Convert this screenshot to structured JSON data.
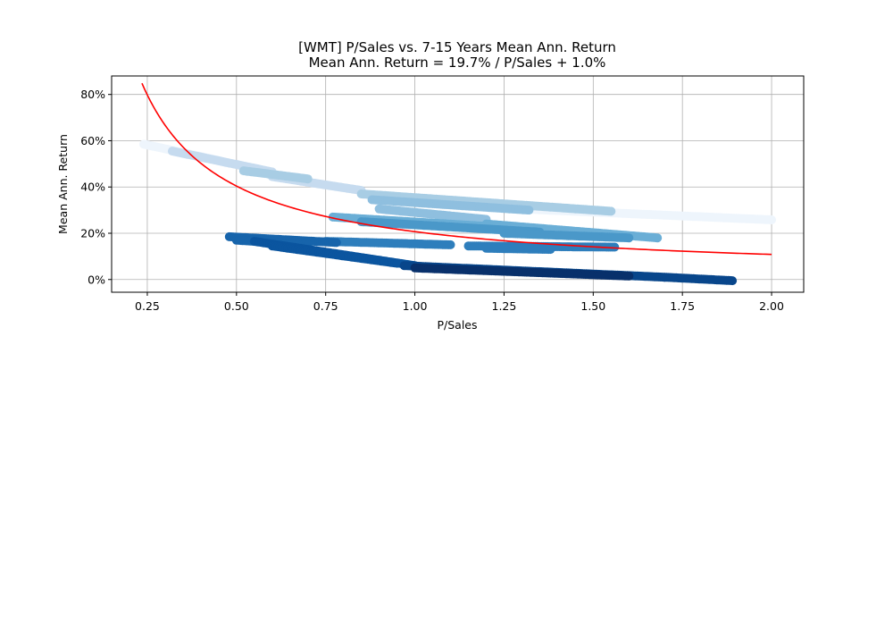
{
  "chart_data": {
    "type": "scatter",
    "title": "[WMT] P/Sales vs. 7-15 Years Mean Ann. Return",
    "subtitle": "Mean Ann. Return = 19.7% / P/Sales + 1.0%",
    "xlabel": "P/Sales",
    "ylabel": "Mean Ann. Return",
    "xlim": [
      0.15,
      2.09
    ],
    "ylim": [
      -0.055,
      0.88
    ],
    "x_ticks": [
      0.25,
      0.5,
      0.75,
      1.0,
      1.25,
      1.5,
      1.75,
      2.0
    ],
    "x_tick_labels": [
      "0.25",
      "0.50",
      "0.75",
      "1.00",
      "1.25",
      "1.50",
      "1.75",
      "2.00"
    ],
    "y_ticks": [
      0.0,
      0.2,
      0.4,
      0.6,
      0.8
    ],
    "y_tick_labels": [
      "0%",
      "20%",
      "40%",
      "60%",
      "80%"
    ],
    "grid": true,
    "fit_line": {
      "formula": "y = 0.197 / x + 0.010",
      "a": 0.197,
      "b": 0.01,
      "x_range": [
        0.235,
        2.0
      ],
      "color": "#ff0000"
    },
    "series": [
      {
        "color": "#eef5fc",
        "segments": [
          {
            "x0": 0.24,
            "y0": 0.585,
            "x1": 0.45,
            "y1": 0.515
          },
          {
            "x0": 1.3,
            "y0": 0.305,
            "x1": 2.0,
            "y1": 0.258
          }
        ]
      },
      {
        "color": "#c6dbef",
        "segments": [
          {
            "x0": 0.32,
            "y0": 0.555,
            "x1": 0.6,
            "y1": 0.465
          },
          {
            "x0": 0.6,
            "y0": 0.445,
            "x1": 0.85,
            "y1": 0.385
          }
        ]
      },
      {
        "color": "#a8cde4",
        "segments": [
          {
            "x0": 0.52,
            "y0": 0.47,
            "x1": 0.7,
            "y1": 0.435
          },
          {
            "x0": 0.85,
            "y0": 0.37,
            "x1": 1.55,
            "y1": 0.295
          }
        ]
      },
      {
        "color": "#8fbfdf",
        "segments": [
          {
            "x0": 0.88,
            "y0": 0.345,
            "x1": 1.32,
            "y1": 0.3
          },
          {
            "x0": 0.9,
            "y0": 0.305,
            "x1": 1.2,
            "y1": 0.26
          }
        ]
      },
      {
        "color": "#6aaed6",
        "segments": [
          {
            "x0": 0.77,
            "y0": 0.27,
            "x1": 1.2,
            "y1": 0.23
          },
          {
            "x0": 1.2,
            "y0": 0.24,
            "x1": 1.68,
            "y1": 0.18
          }
        ]
      },
      {
        "color": "#4a98c9",
        "segments": [
          {
            "x0": 0.85,
            "y0": 0.25,
            "x1": 1.35,
            "y1": 0.205
          },
          {
            "x0": 1.25,
            "y0": 0.2,
            "x1": 1.6,
            "y1": 0.18
          }
        ]
      },
      {
        "color": "#2e7ebc",
        "segments": [
          {
            "x0": 0.75,
            "y0": 0.165,
            "x1": 1.1,
            "y1": 0.15
          },
          {
            "x0": 1.15,
            "y0": 0.145,
            "x1": 1.56,
            "y1": 0.14
          },
          {
            "x0": 1.2,
            "y0": 0.135,
            "x1": 1.38,
            "y1": 0.13
          }
        ]
      },
      {
        "color": "#1764ab",
        "segments": [
          {
            "x0": 0.48,
            "y0": 0.185,
            "x1": 0.78,
            "y1": 0.16
          },
          {
            "x0": 0.5,
            "y0": 0.17,
            "x1": 0.7,
            "y1": 0.15
          }
        ]
      },
      {
        "color": "#0b559f",
        "segments": [
          {
            "x0": 0.55,
            "y0": 0.165,
            "x1": 1.0,
            "y1": 0.06
          },
          {
            "x0": 0.6,
            "y0": 0.145,
            "x1": 0.95,
            "y1": 0.07
          }
        ]
      },
      {
        "color": "#08468b",
        "segments": [
          {
            "x0": 0.97,
            "y0": 0.06,
            "x1": 1.7,
            "y1": 0.01
          },
          {
            "x0": 1.7,
            "y0": 0.01,
            "x1": 1.89,
            "y1": -0.005
          }
        ]
      },
      {
        "color": "#08306b",
        "segments": [
          {
            "x0": 1.0,
            "y0": 0.05,
            "x1": 1.6,
            "y1": 0.015
          }
        ]
      }
    ]
  }
}
